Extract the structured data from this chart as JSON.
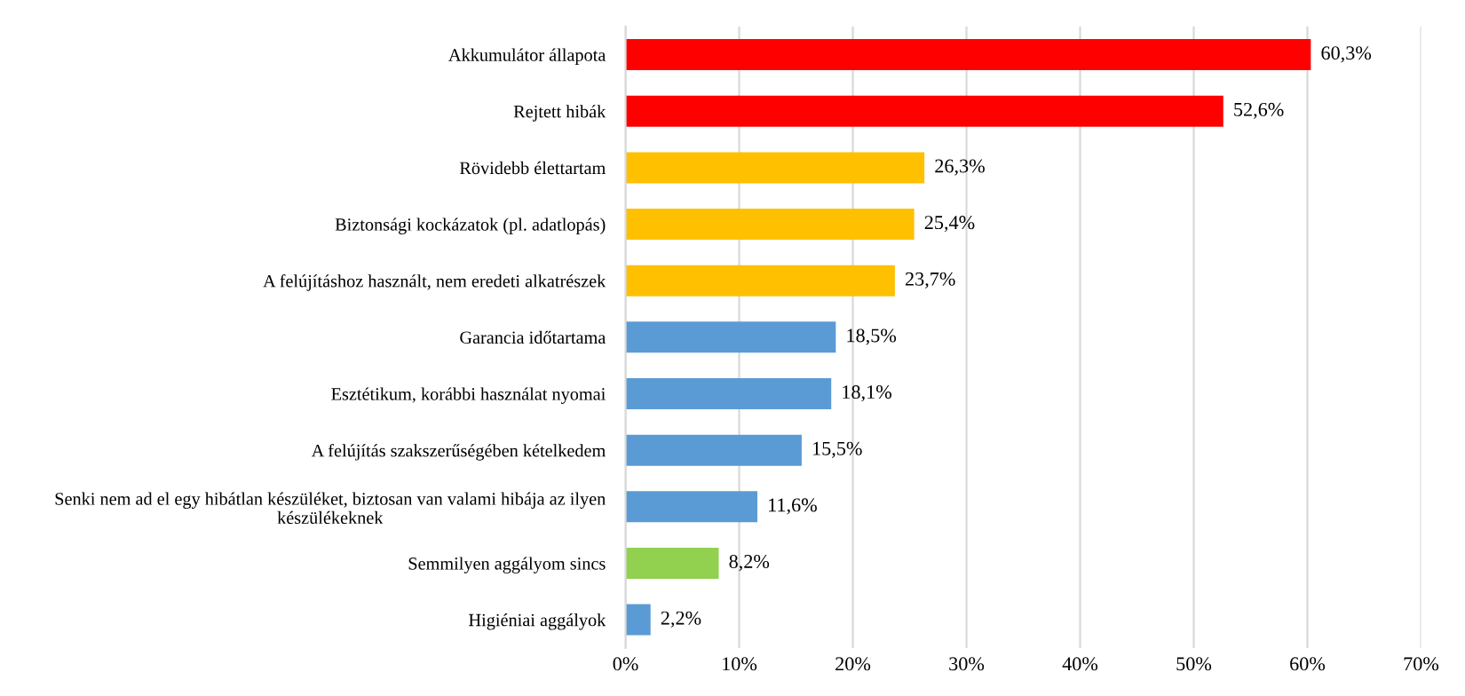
{
  "chart_data": {
    "type": "bar",
    "orientation": "horizontal",
    "categories": [
      "Akkumulátor állapota",
      "Rejtett hibák",
      "Rövidebb élettartam",
      "Biztonsági kockázatok (pl. adatlopás)",
      "A felújításhoz használt, nem eredeti alkatrészek",
      "Garancia időtartama",
      "Esztétikum, korábbi használat nyomai",
      "A felújítás szakszerűségében kételkedem",
      "Senki nem ad el egy hibátlan készüléket, biztosan van valami hibája az ilyen\nkészülékeknek",
      "Semmilyen aggályom sincs",
      "Higiéniai aggályok"
    ],
    "values": [
      60.3,
      52.6,
      26.3,
      25.4,
      23.7,
      18.5,
      18.1,
      15.5,
      11.6,
      8.2,
      2.2
    ],
    "colors": [
      "#ff0000",
      "#ff0000",
      "#ffc000",
      "#ffc000",
      "#ffc000",
      "#5b9bd5",
      "#5b9bd5",
      "#5b9bd5",
      "#5b9bd5",
      "#92d050",
      "#5b9bd5"
    ],
    "value_labels": [
      "60,3%",
      "52,6%",
      "26,3%",
      "25,4%",
      "23,7%",
      "18,5%",
      "18,1%",
      "15,5%",
      "11,6%",
      "8,2%",
      "2,2%"
    ],
    "xlim": [
      0,
      70
    ],
    "xticks": [
      {
        "value": 0,
        "label": "0%"
      },
      {
        "value": 10,
        "label": "10%"
      },
      {
        "value": 20,
        "label": "20%"
      },
      {
        "value": 30,
        "label": "30%"
      },
      {
        "value": 40,
        "label": "40%"
      },
      {
        "value": 50,
        "label": "50%"
      },
      {
        "value": 60,
        "label": "60%"
      },
      {
        "value": 70,
        "label": "70%"
      }
    ],
    "grid": "x",
    "legend": false
  }
}
